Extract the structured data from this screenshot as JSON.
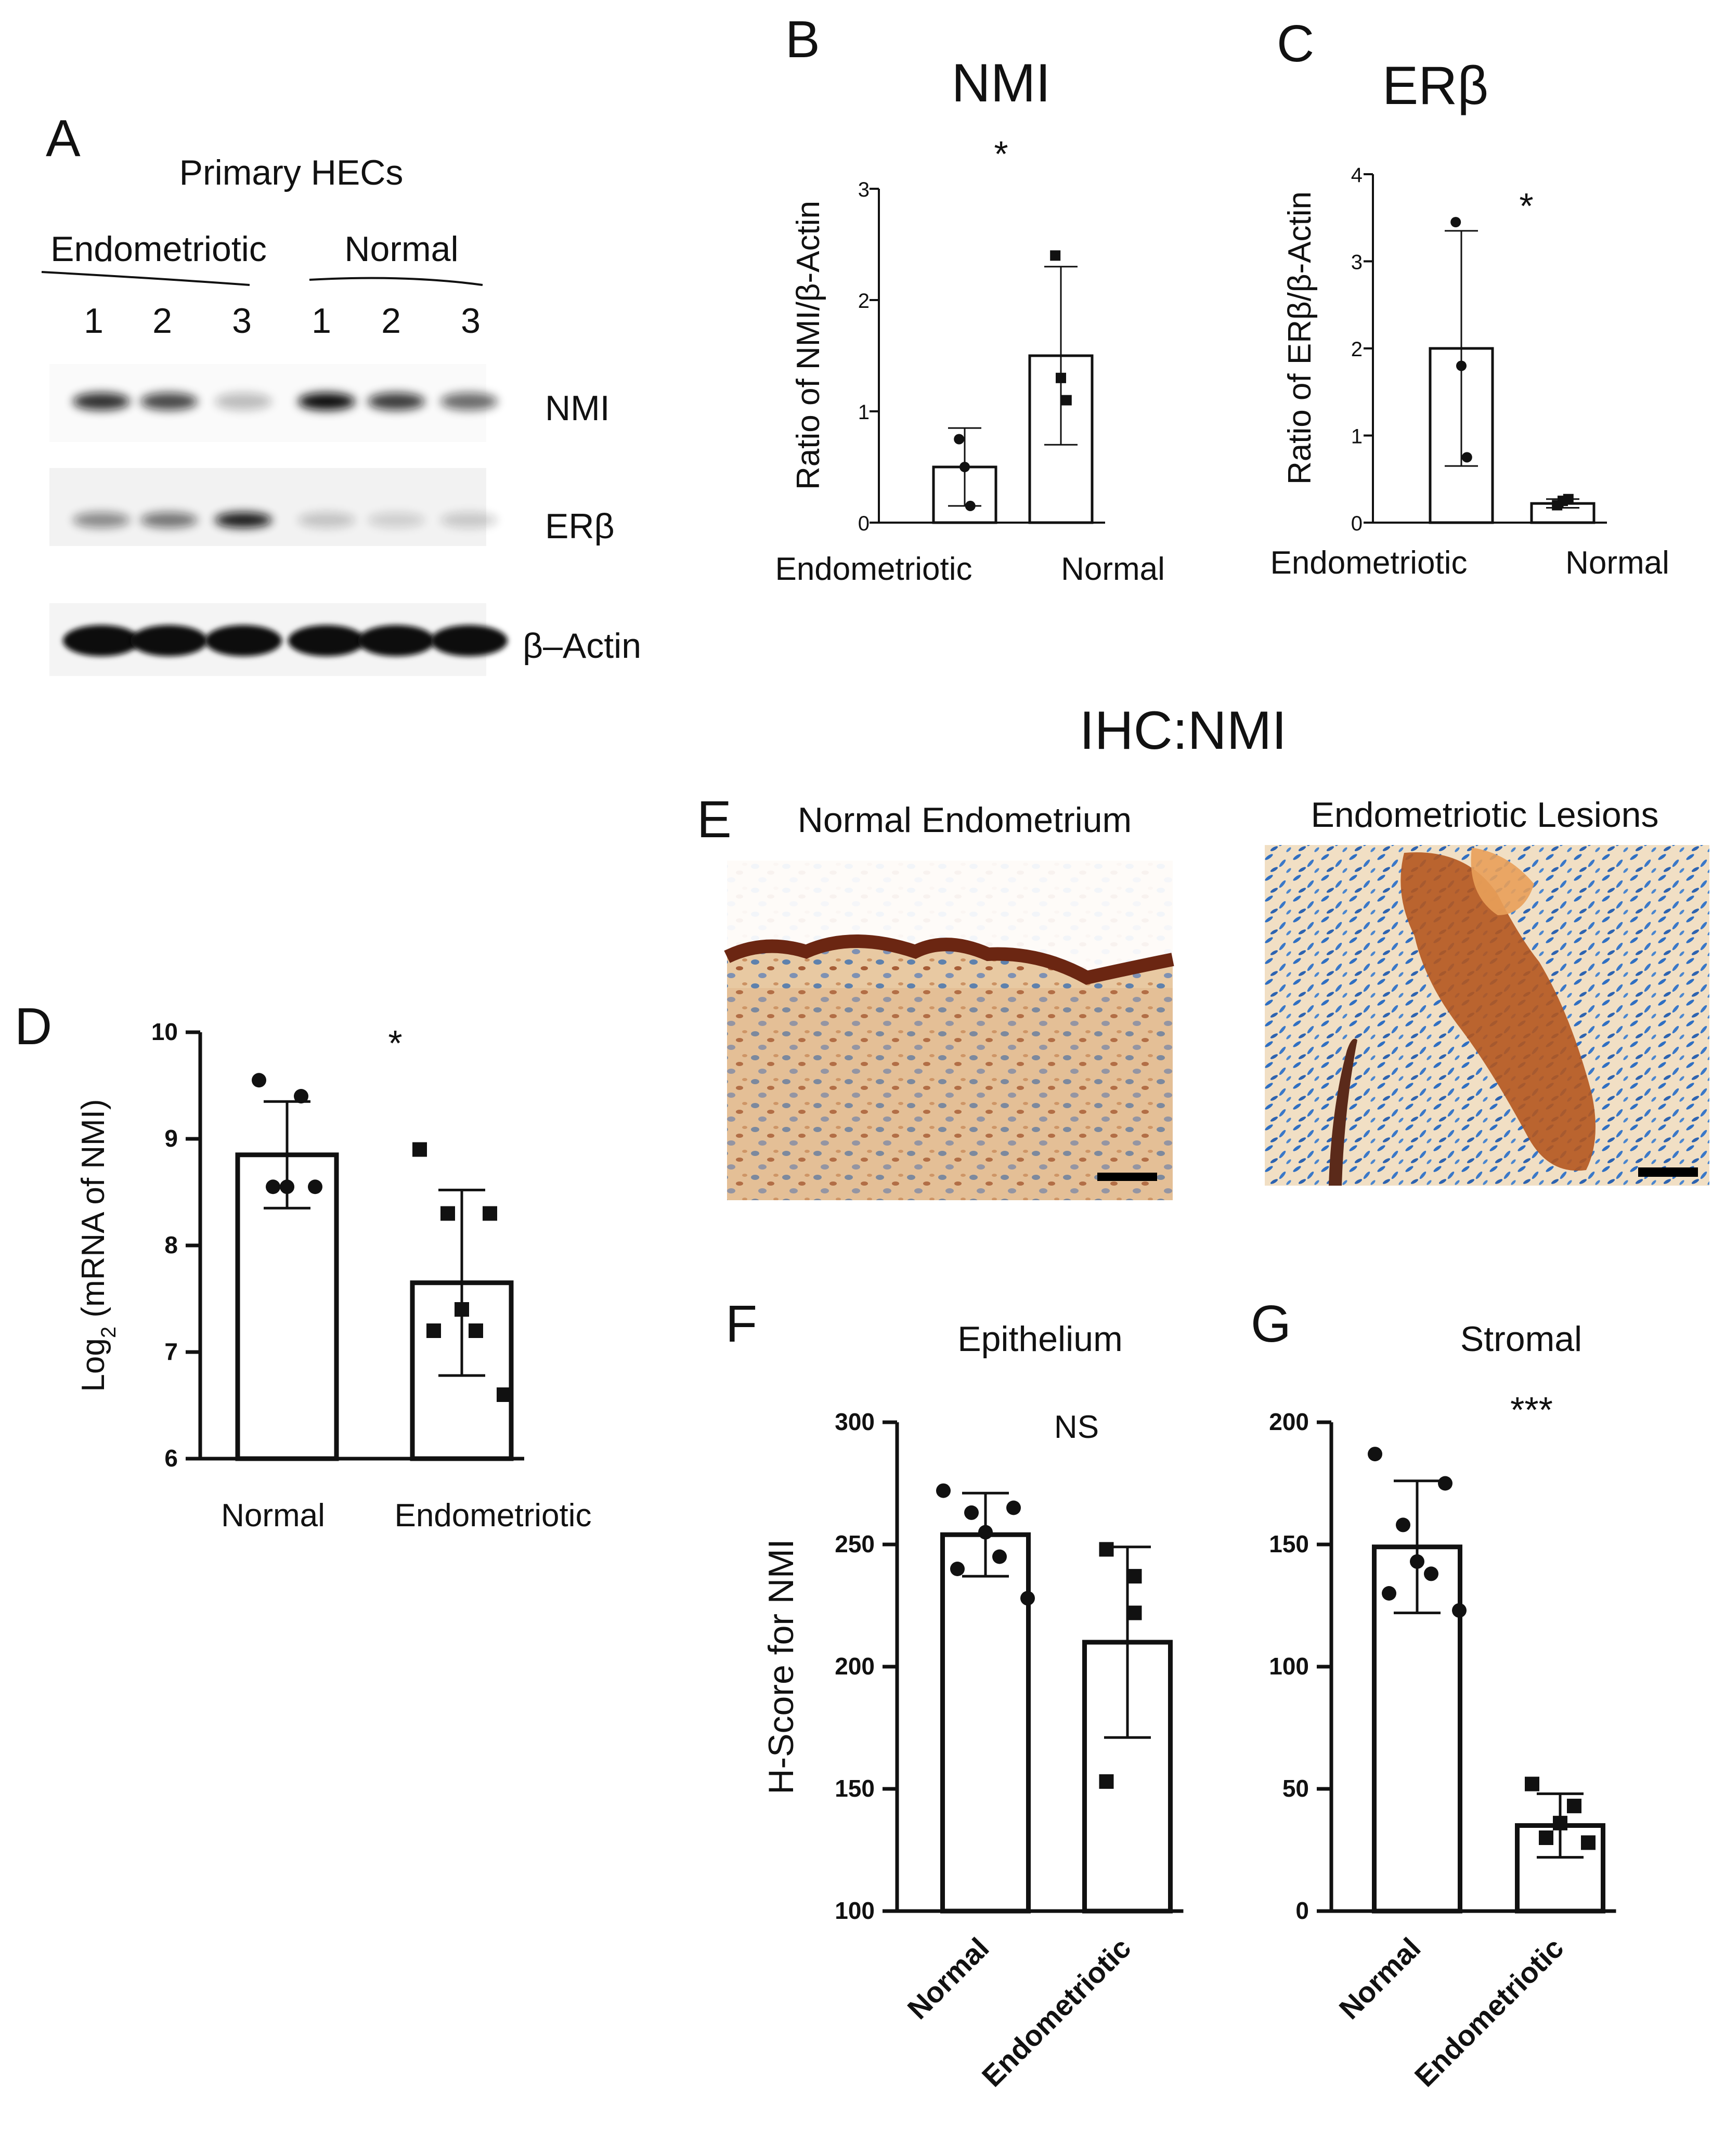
{
  "panels": {
    "A": "A",
    "B": "B",
    "C": "C",
    "D": "D",
    "E": "E",
    "F": "F",
    "G": "G"
  },
  "blot": {
    "header": "Primary HECs",
    "group_labels": [
      "Endometriotic",
      "Normal"
    ],
    "lane_labels": [
      "1",
      "2",
      "3",
      "1",
      "2",
      "3"
    ],
    "band_labels": [
      "NMI",
      "ERβ",
      "β–Actin"
    ],
    "band_intensity": {
      "NMI": [
        0.85,
        0.75,
        0.25,
        1.0,
        0.8,
        0.6
      ],
      "ERβ": [
        0.45,
        0.55,
        0.95,
        0.2,
        0.15,
        0.18
      ],
      "β–Actin": [
        1.0,
        1.0,
        1.0,
        1.0,
        1.0,
        1.0
      ]
    }
  },
  "ihc": {
    "title": "IHC:NMI",
    "left_caption": "Normal Endometrium",
    "right_caption": "Endometriotic Lesions"
  },
  "chart_data": [
    {
      "id": "B",
      "type": "bar",
      "title": "NMI",
      "ylabel": "Ratio of NMI/β-Actin",
      "categories": [
        "Endometriotic",
        "Normal"
      ],
      "values": [
        0.5,
        1.5
      ],
      "errors": [
        0.35,
        0.8
      ],
      "points": [
        [
          0.75,
          0.5,
          0.15
        ],
        [
          2.4,
          1.3,
          1.1
        ]
      ],
      "markers": [
        "circle",
        "square"
      ],
      "ylim": [
        0,
        3
      ],
      "yticks": [
        "0",
        "1",
        "2",
        "3"
      ],
      "significance": "*"
    },
    {
      "id": "C",
      "type": "bar",
      "title": "ERβ",
      "ylabel": "Ratio of ERβ/β-Actin",
      "categories": [
        "Endometriotic",
        "Normal"
      ],
      "values": [
        2.0,
        0.22
      ],
      "errors": [
        1.35,
        0.05
      ],
      "points": [
        [
          3.45,
          1.8,
          0.75
        ],
        [
          0.2,
          0.25,
          0.27
        ]
      ],
      "markers": [
        "circle",
        "square"
      ],
      "ylim": [
        0,
        4
      ],
      "yticks": [
        "0",
        "1",
        "2",
        "3",
        "4"
      ],
      "significance": "*"
    },
    {
      "id": "D",
      "type": "bar",
      "title": "",
      "ylabel_main": "Log",
      "ylabel_sub": "2",
      "ylabel_rest": " (mRNA of NMI)",
      "categories": [
        "Normal",
        "Endometriotic"
      ],
      "values": [
        8.85,
        7.65
      ],
      "errors": [
        0.5,
        0.87
      ],
      "points": [
        [
          9.55,
          9.4,
          8.55,
          8.55,
          8.55
        ],
        [
          8.9,
          8.3,
          8.3,
          7.4,
          7.2,
          7.2,
          6.6
        ]
      ],
      "markers": [
        "circle",
        "square"
      ],
      "ylim": [
        6,
        10
      ],
      "yticks": [
        "6",
        "7",
        "8",
        "9",
        "10"
      ],
      "significance": "*"
    },
    {
      "id": "F",
      "type": "bar",
      "title": "Epithelium",
      "ylabel": "H-Score for NMI",
      "categories": [
        "Normal",
        "Endometriotic"
      ],
      "values": [
        254,
        210
      ],
      "errors": [
        17,
        39
      ],
      "points": [
        [
          272,
          265,
          263,
          255,
          245,
          240,
          228
        ],
        [
          248,
          237,
          222,
          153
        ]
      ],
      "markers": [
        "circle",
        "square"
      ],
      "ylim": [
        100,
        300
      ],
      "yticks": [
        "100",
        "150",
        "200",
        "250",
        "300"
      ],
      "significance": "NS"
    },
    {
      "id": "G",
      "type": "bar",
      "title": "Stromal",
      "ylabel": "",
      "categories": [
        "Normal",
        "Endometriotic"
      ],
      "values": [
        149,
        35
      ],
      "errors": [
        27,
        13
      ],
      "points": [
        [
          187,
          175,
          158,
          143,
          138,
          130,
          123
        ],
        [
          52,
          43,
          36,
          30,
          28
        ]
      ],
      "markers": [
        "circle",
        "square"
      ],
      "ylim": [
        0,
        200
      ],
      "yticks": [
        "0",
        "50",
        "100",
        "150",
        "200"
      ],
      "significance": "***"
    }
  ],
  "colors": {
    "ink": "#111111",
    "stain_brown": "#a2451d",
    "stain_blue": "#2f6fc2",
    "stain_orange": "#e98a3a",
    "background_pale": "#f3e8d6"
  }
}
